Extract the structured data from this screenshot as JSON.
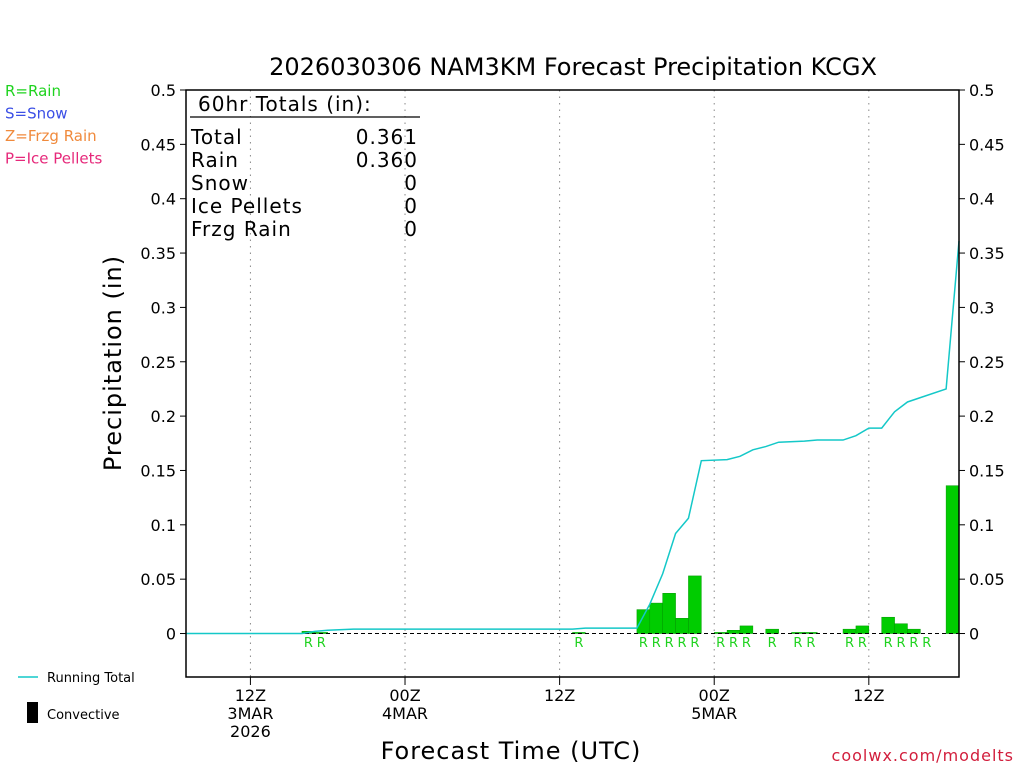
{
  "chart_data": {
    "type": "bar",
    "title": "2026030306 NAM3KM Forecast Precipitation KCGX",
    "xlabel": "Forecast Time (UTC)",
    "ylabel": "Precipitation (in)",
    "ylim": [
      -0.04,
      0.5
    ],
    "x_range_hours": [
      1,
      61
    ],
    "y_ticks": [
      0,
      0.05,
      0.1,
      0.15,
      0.2,
      0.25,
      0.3,
      0.35,
      0.4,
      0.45,
      0.5
    ],
    "y_tick_labels": [
      "0",
      "0.05",
      "0.1",
      "0.15",
      "0.2",
      "0.25",
      "0.3",
      "0.35",
      "0.4",
      "0.45",
      "0.5"
    ],
    "x_ticks": [
      {
        "hour": 6,
        "lines": [
          "12Z",
          "3MAR",
          "2026"
        ]
      },
      {
        "hour": 18,
        "lines": [
          "00Z",
          "4MAR"
        ]
      },
      {
        "hour": 30,
        "lines": [
          "12Z"
        ]
      },
      {
        "hour": 42,
        "lines": [
          "00Z",
          "5MAR"
        ]
      },
      {
        "hour": 54,
        "lines": [
          "12Z"
        ]
      }
    ],
    "bars": [
      {
        "hour": 11,
        "value": 0.002,
        "type": "R"
      },
      {
        "hour": 12,
        "value": 0.001,
        "type": "R"
      },
      {
        "hour": 32,
        "value": 0.001,
        "type": "R"
      },
      {
        "hour": 37,
        "value": 0.022,
        "type": "R"
      },
      {
        "hour": 38,
        "value": 0.028,
        "type": "R"
      },
      {
        "hour": 39,
        "value": 0.037,
        "type": "R"
      },
      {
        "hour": 40,
        "value": 0.014,
        "type": "R"
      },
      {
        "hour": 41,
        "value": 0.053,
        "type": "R"
      },
      {
        "hour": 43,
        "value": 0.001,
        "type": "R"
      },
      {
        "hour": 44,
        "value": 0.003,
        "type": "R"
      },
      {
        "hour": 45,
        "value": 0.007,
        "type": "R"
      },
      {
        "hour": 47,
        "value": 0.004,
        "type": "R"
      },
      {
        "hour": 49,
        "value": 0.001,
        "type": "R"
      },
      {
        "hour": 50,
        "value": 0.001,
        "type": "R"
      },
      {
        "hour": 53,
        "value": 0.004,
        "type": "R"
      },
      {
        "hour": 54,
        "value": 0.007,
        "type": "R"
      },
      {
        "hour": 56,
        "value": 0.015,
        "type": "R"
      },
      {
        "hour": 57,
        "value": 0.009,
        "type": "R"
      },
      {
        "hour": 58,
        "value": 0.004,
        "type": "R"
      },
      {
        "hour": 61,
        "value": 0.136,
        "type": "R"
      }
    ],
    "running_total": [
      [
        1,
        0
      ],
      [
        10,
        0
      ],
      [
        11,
        0.002
      ],
      [
        12,
        0.003
      ],
      [
        14,
        0.004
      ],
      [
        31,
        0.004
      ],
      [
        32,
        0.005
      ],
      [
        36,
        0.005
      ],
      [
        37,
        0.027
      ],
      [
        38,
        0.055
      ],
      [
        39,
        0.092
      ],
      [
        40,
        0.106
      ],
      [
        41,
        0.159
      ],
      [
        43,
        0.16
      ],
      [
        44,
        0.163
      ],
      [
        45,
        0.169
      ],
      [
        46,
        0.172
      ],
      [
        47,
        0.176
      ],
      [
        49,
        0.177
      ],
      [
        50,
        0.178
      ],
      [
        52,
        0.178
      ],
      [
        53,
        0.182
      ],
      [
        54,
        0.189
      ],
      [
        55,
        0.189
      ],
      [
        56,
        0.204
      ],
      [
        57,
        0.213
      ],
      [
        58,
        0.217
      ],
      [
        60,
        0.225
      ],
      [
        61,
        0.361
      ]
    ],
    "ptype_marks": [
      {
        "hour": 11,
        "label": "R"
      },
      {
        "hour": 12,
        "label": "R"
      },
      {
        "hour": 32,
        "label": "R"
      },
      {
        "hour": 37,
        "label": "R"
      },
      {
        "hour": 38,
        "label": "R"
      },
      {
        "hour": 39,
        "label": "R"
      },
      {
        "hour": 40,
        "label": "R"
      },
      {
        "hour": 41,
        "label": "R"
      },
      {
        "hour": 43,
        "label": "R"
      },
      {
        "hour": 44,
        "label": "R"
      },
      {
        "hour": 45,
        "label": "R"
      },
      {
        "hour": 47,
        "label": "R"
      },
      {
        "hour": 49,
        "label": "R"
      },
      {
        "hour": 50,
        "label": "R"
      },
      {
        "hour": 53,
        "label": "R"
      },
      {
        "hour": 54,
        "label": "R"
      },
      {
        "hour": 56,
        "label": "R"
      },
      {
        "hour": 57,
        "label": "R"
      },
      {
        "hour": 58,
        "label": "R"
      },
      {
        "hour": 59,
        "label": "R"
      }
    ],
    "totals_box": {
      "title": "60hr Totals (in):",
      "rows": [
        {
          "label": "Total",
          "value": "0.361"
        },
        {
          "label": "Rain",
          "value": "0.360"
        },
        {
          "label": "Snow",
          "value": "0"
        },
        {
          "label": "Ice Pellets",
          "value": "0"
        },
        {
          "label": "Frzg Rain",
          "value": "0"
        }
      ]
    },
    "ptype_legend": [
      {
        "label": "R=Rain",
        "color": "#1fd31f"
      },
      {
        "label": "S=Snow",
        "color": "#3b4fe6"
      },
      {
        "label": "Z=Frzg Rain",
        "color": "#f08a3c"
      },
      {
        "label": "P=Ice Pellets",
        "color": "#e6287a"
      }
    ],
    "series_legend": {
      "running_total": "Running Total",
      "convective": "Convective"
    },
    "colors": {
      "bar": "#00cc00",
      "bar_stroke": "#009900",
      "line": "#14c8c8",
      "ptype_mark": "#1fd31f",
      "gridline": "#888888",
      "credit": "#d21e3c"
    },
    "credit": "coolwx.com/modelts"
  }
}
